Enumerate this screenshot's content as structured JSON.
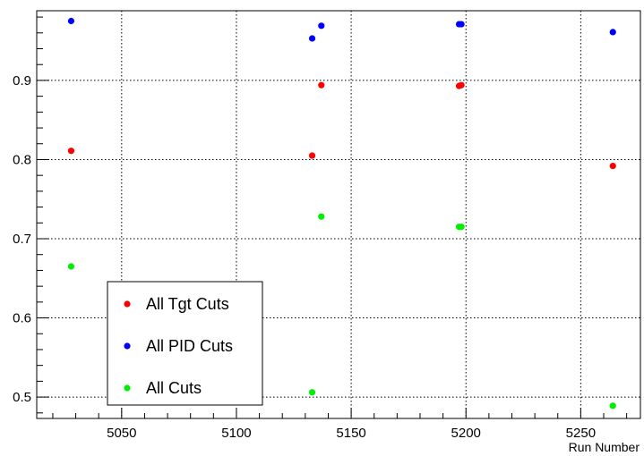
{
  "chart_data": {
    "type": "scatter",
    "xlabel": "Run Number",
    "ylabel": "",
    "xlim": [
      5013,
      5276
    ],
    "ylim": [
      0.473,
      0.988
    ],
    "xticks": [
      5050,
      5100,
      5150,
      5200,
      5250
    ],
    "yticks": [
      0.5,
      0.6,
      0.7,
      0.8,
      0.9
    ],
    "grid": true,
    "legend_position": "bottom-left",
    "series": [
      {
        "name": "All Tgt Cuts",
        "color": "#ff0000",
        "points": [
          {
            "x": 5028,
            "y": 0.811
          },
          {
            "x": 5133,
            "y": 0.805
          },
          {
            "x": 5137,
            "y": 0.894
          },
          {
            "x": 5197,
            "y": 0.893
          },
          {
            "x": 5198,
            "y": 0.894
          },
          {
            "x": 5264,
            "y": 0.792
          }
        ]
      },
      {
        "name": "All PID Cuts",
        "color": "#0000ff",
        "points": [
          {
            "x": 5028,
            "y": 0.975
          },
          {
            "x": 5133,
            "y": 0.953
          },
          {
            "x": 5137,
            "y": 0.969
          },
          {
            "x": 5197,
            "y": 0.971
          },
          {
            "x": 5198,
            "y": 0.971
          },
          {
            "x": 5264,
            "y": 0.961
          }
        ]
      },
      {
        "name": "All Cuts",
        "color": "#00ee00",
        "points": [
          {
            "x": 5028,
            "y": 0.665
          },
          {
            "x": 5133,
            "y": 0.506
          },
          {
            "x": 5137,
            "y": 0.728
          },
          {
            "x": 5197,
            "y": 0.715
          },
          {
            "x": 5198,
            "y": 0.715
          },
          {
            "x": 5264,
            "y": 0.489
          }
        ]
      }
    ]
  }
}
